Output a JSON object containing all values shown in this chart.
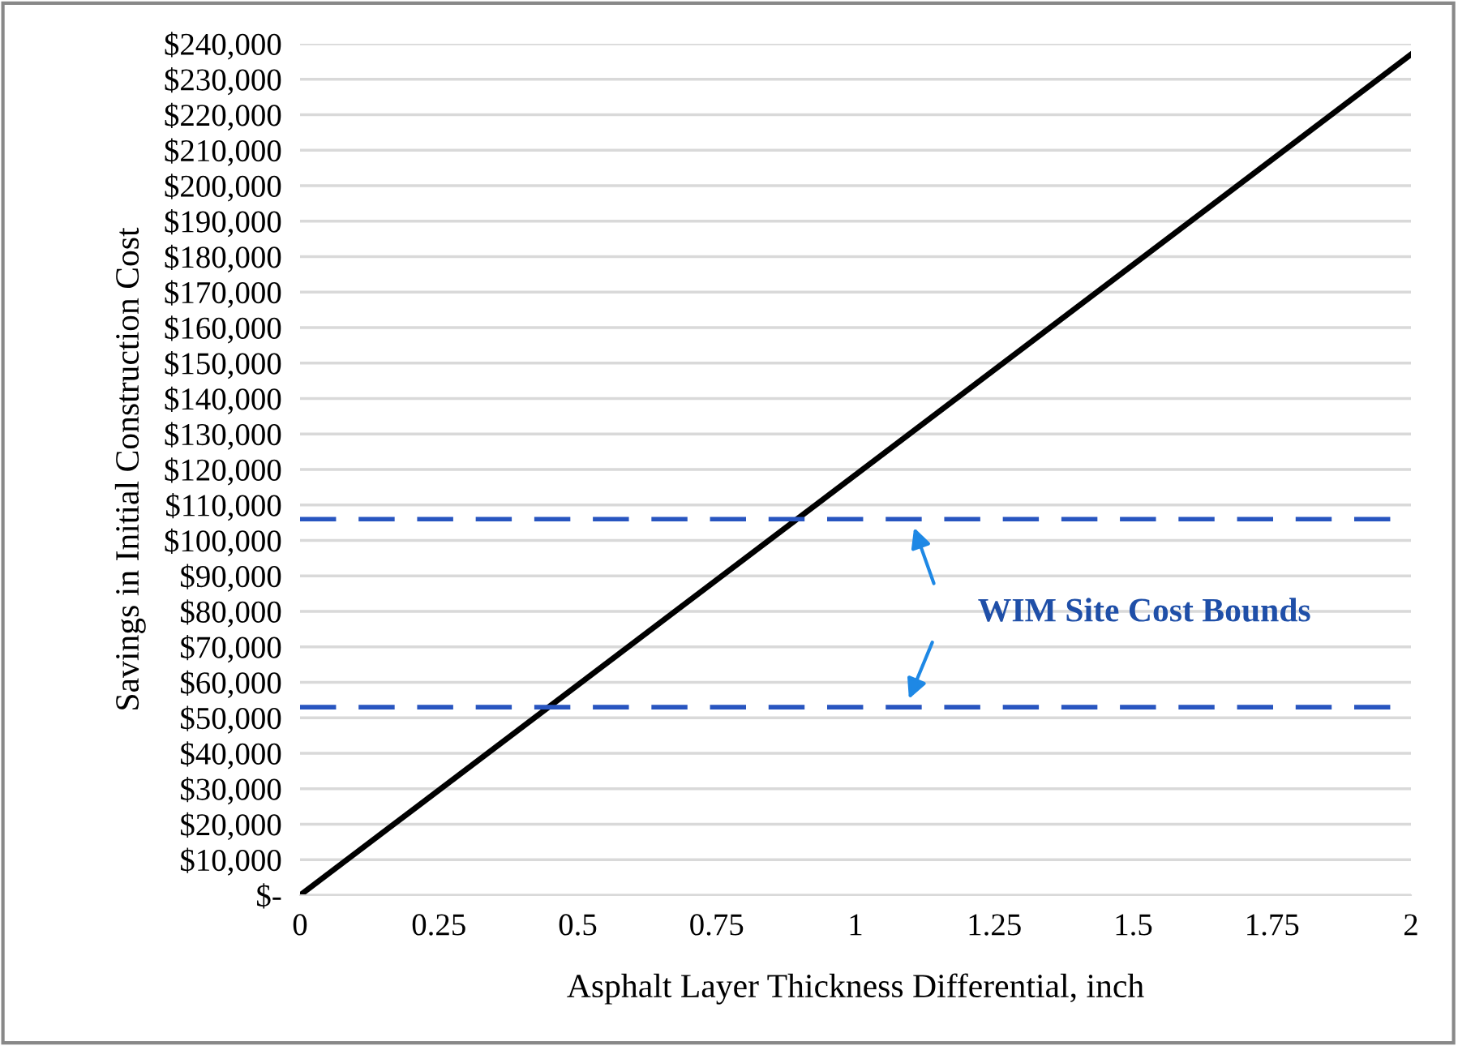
{
  "chart_data": {
    "type": "line",
    "xlabel": "Asphalt Layer Thickness Differential, inch",
    "ylabel": "Savings in Initial Construction Cost",
    "x": [
      0,
      2
    ],
    "series": [
      {
        "color": "#000000",
        "values": [
          0,
          237000
        ]
      }
    ],
    "xlim": [
      0,
      2
    ],
    "xticks": [
      0,
      0.25,
      0.5,
      0.75,
      1,
      1.25,
      1.5,
      1.75,
      2
    ],
    "ylim": [
      0,
      240000
    ],
    "yticks": [
      {
        "value": 0,
        "label": "$-"
      },
      {
        "value": 10000,
        "label": "$10,000"
      },
      {
        "value": 20000,
        "label": "$20,000"
      },
      {
        "value": 30000,
        "label": "$30,000"
      },
      {
        "value": 40000,
        "label": "$40,000"
      },
      {
        "value": 50000,
        "label": "$50,000"
      },
      {
        "value": 60000,
        "label": "$60,000"
      },
      {
        "value": 70000,
        "label": "$70,000"
      },
      {
        "value": 80000,
        "label": "$80,000"
      },
      {
        "value": 90000,
        "label": "$90,000"
      },
      {
        "value": 100000,
        "label": "$100,000"
      },
      {
        "value": 110000,
        "label": "$110,000"
      },
      {
        "value": 120000,
        "label": "$120,000"
      },
      {
        "value": 130000,
        "label": "$130,000"
      },
      {
        "value": 140000,
        "label": "$140,000"
      },
      {
        "value": 150000,
        "label": "$150,000"
      },
      {
        "value": 160000,
        "label": "$160,000"
      },
      {
        "value": 170000,
        "label": "$170,000"
      },
      {
        "value": 180000,
        "label": "$180,000"
      },
      {
        "value": 190000,
        "label": "$190,000"
      },
      {
        "value": 200000,
        "label": "$200,000"
      },
      {
        "value": 210000,
        "label": "$210,000"
      },
      {
        "value": 220000,
        "label": "$220,000"
      },
      {
        "value": 230000,
        "label": "$230,000"
      },
      {
        "value": 240000,
        "label": "$240,000"
      }
    ],
    "ref_lines": [
      {
        "axis": "y",
        "value": 106000,
        "color": "#2855c0",
        "line_style": "dashed"
      },
      {
        "axis": "y",
        "value": 53000,
        "color": "#2855c0",
        "line_style": "dashed"
      }
    ],
    "annotations": [
      "WIM Site Cost Bounds"
    ],
    "grid": "y",
    "marker": "none",
    "line_style": "solid"
  }
}
